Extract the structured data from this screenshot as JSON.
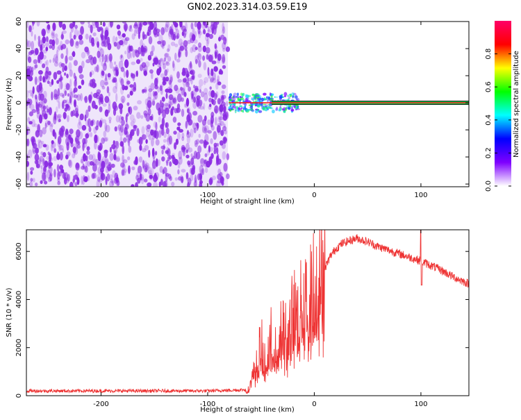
{
  "title": "GN02.2023.314.03.59.E19",
  "chart_data": [
    {
      "type": "heatmap",
      "xlabel": "Height of straight line (km)",
      "ylabel": "Frequency (Hz)",
      "xlim": [
        -270,
        145
      ],
      "ylim": [
        -62,
        60
      ],
      "x_ticks": [
        -200,
        -100,
        0,
        100
      ],
      "y_ticks": [
        -60,
        -40,
        -20,
        0,
        20,
        40,
        60
      ],
      "colorbar": {
        "label": "Normalized spectral amplitude",
        "range": [
          0,
          1
        ],
        "ticks": [
          "0.0",
          "0.2",
          "0.4",
          "0.6",
          "0.8"
        ],
        "colors": [
          "#ffffff",
          "#7f00ff",
          "#0000ff",
          "#00ffff",
          "#00ff00",
          "#ffff00",
          "#ff0000",
          "#ff0066"
        ]
      },
      "features": {
        "noise_region_x": [
          -270,
          -81
        ],
        "noise_color": "#8a2be2",
        "signal_line_frequency_hz": 0,
        "signal_line_x": [
          -80,
          145
        ],
        "signal_line_color": "#ff2222"
      }
    },
    {
      "type": "line",
      "xlabel": "Height of straight line (km)",
      "ylabel": "SNR (10 * v/v)",
      "xlim": [
        -270,
        145
      ],
      "ylim": [
        0,
        6900
      ],
      "x_ticks": [
        -200,
        -100,
        0,
        100
      ],
      "y_ticks": [
        0,
        2000,
        4000,
        6000
      ],
      "series": [
        {
          "color": "#ee3333",
          "x": [
            -270,
            -200,
            -100,
            -62,
            -55,
            -50,
            -45,
            -40,
            -35,
            -30,
            -25,
            -20,
            -15,
            -10,
            -5,
            0,
            5,
            10,
            15,
            20,
            25,
            30,
            40,
            50,
            60,
            70,
            80,
            90,
            100,
            110,
            120,
            130,
            145
          ],
          "y": [
            200,
            200,
            200,
            250,
            1200,
            2200,
            1300,
            2600,
            1600,
            3000,
            2400,
            3500,
            3300,
            4100,
            4000,
            4700,
            5000,
            5300,
            5800,
            6100,
            6300,
            6400,
            6550,
            6400,
            6200,
            6050,
            5900,
            5750,
            5600,
            5400,
            5200,
            4950,
            4650
          ]
        }
      ]
    }
  ]
}
